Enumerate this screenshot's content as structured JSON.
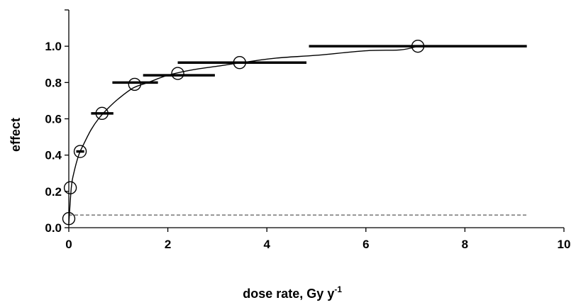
{
  "chart_data": {
    "type": "scatter",
    "xlabel": "dose rate, Gy y",
    "xlabel_superscript": "-1",
    "ylabel": "effect",
    "xlim": [
      0,
      10
    ],
    "ylim": [
      0,
      1.2
    ],
    "x_ticks": [
      0,
      2,
      4,
      6,
      8,
      10
    ],
    "y_ticks": [
      0.0,
      0.2,
      0.4,
      0.6,
      0.8,
      1.0
    ],
    "x_tick_labels": [
      "0",
      "2",
      "4",
      "6",
      "8",
      "10"
    ],
    "y_tick_labels": [
      "0.0",
      "0.2",
      "0.4",
      "0.6",
      "0.8",
      "1.0"
    ],
    "grid": false,
    "legend": "none",
    "points": [
      {
        "x": 0.0,
        "y": 0.05
      },
      {
        "x": 0.03,
        "y": 0.22
      },
      {
        "x": 0.23,
        "y": 0.42
      },
      {
        "x": 0.67,
        "y": 0.63
      },
      {
        "x": 1.33,
        "y": 0.79
      },
      {
        "x": 2.2,
        "y": 0.85
      },
      {
        "x": 3.45,
        "y": 0.91
      },
      {
        "x": 7.05,
        "y": 1.0
      }
    ],
    "x_ranges": [
      {
        "x0": 0.15,
        "x1": 0.31,
        "y": 0.42
      },
      {
        "x0": 0.45,
        "x1": 0.9,
        "y": 0.63
      },
      {
        "x0": 0.88,
        "x1": 1.8,
        "y": 0.8
      },
      {
        "x0": 1.5,
        "x1": 2.95,
        "y": 0.84
      },
      {
        "x0": 2.2,
        "x1": 4.8,
        "y": 0.91
      },
      {
        "x0": 4.85,
        "x1": 9.25,
        "y": 1.0
      }
    ],
    "fit_curve": [
      {
        "x": 0.0,
        "y": 0.02
      },
      {
        "x": 0.05,
        "y": 0.22
      },
      {
        "x": 0.1,
        "y": 0.3
      },
      {
        "x": 0.2,
        "y": 0.4
      },
      {
        "x": 0.3,
        "y": 0.46
      },
      {
        "x": 0.45,
        "y": 0.54
      },
      {
        "x": 0.6,
        "y": 0.6
      },
      {
        "x": 0.8,
        "y": 0.66
      },
      {
        "x": 1.0,
        "y": 0.71
      },
      {
        "x": 1.3,
        "y": 0.77
      },
      {
        "x": 1.6,
        "y": 0.8
      },
      {
        "x": 2.0,
        "y": 0.84
      },
      {
        "x": 2.5,
        "y": 0.87
      },
      {
        "x": 3.0,
        "y": 0.89
      },
      {
        "x": 3.5,
        "y": 0.91
      },
      {
        "x": 4.2,
        "y": 0.935
      },
      {
        "x": 5.0,
        "y": 0.95
      },
      {
        "x": 6.0,
        "y": 0.975
      },
      {
        "x": 6.7,
        "y": 0.98
      },
      {
        "x": 7.05,
        "y": 1.0
      }
    ],
    "baseline": {
      "y": 0.07,
      "x0": 0,
      "x1": 9.25,
      "style": "dashed"
    }
  }
}
